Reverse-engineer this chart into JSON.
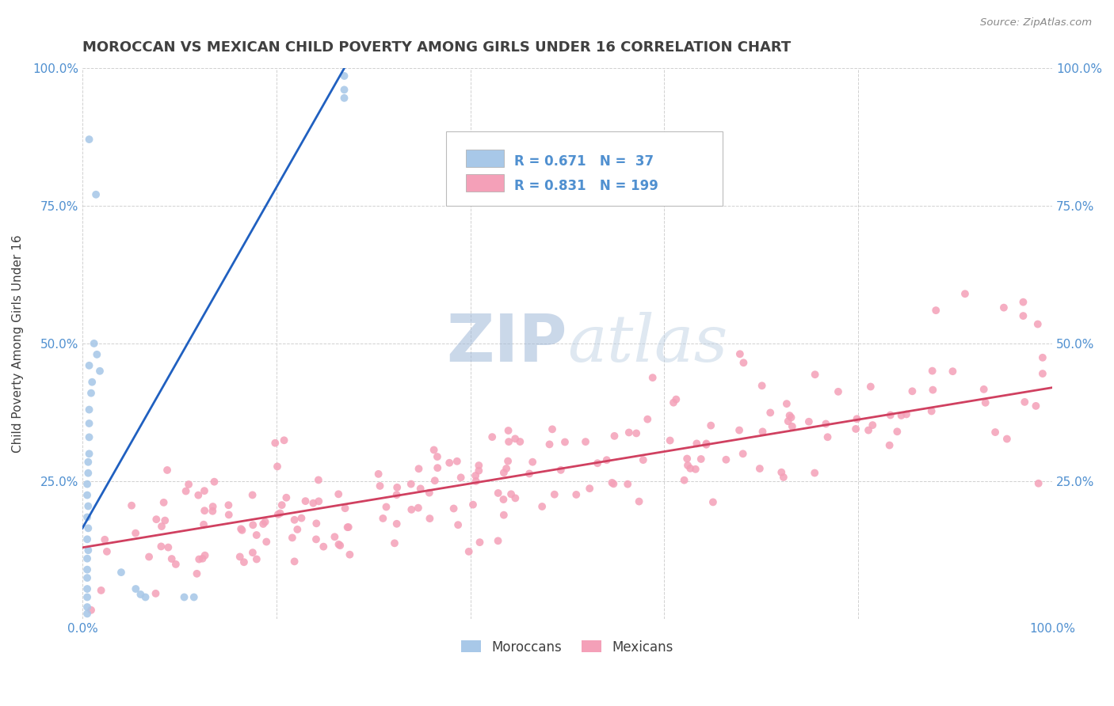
{
  "title": "MOROCCAN VS MEXICAN CHILD POVERTY AMONG GIRLS UNDER 16 CORRELATION CHART",
  "source": "Source: ZipAtlas.com",
  "ylabel": "Child Poverty Among Girls Under 16",
  "moroccan_R": 0.671,
  "moroccan_N": 37,
  "mexican_R": 0.831,
  "mexican_N": 199,
  "moroccan_color": "#a8c8e8",
  "mexican_color": "#f4a0b8",
  "moroccan_line_color": "#2060c0",
  "mexican_line_color": "#d04060",
  "watermark_zip": "ZIP",
  "watermark_atlas": "atlas",
  "watermark_color": "#c8d8ec",
  "background_color": "#ffffff",
  "grid_color": "#cccccc",
  "tick_label_color": "#5090d0",
  "title_color": "#404040",
  "legend_text_color": "#404040",
  "legend_val_color": "#5090d0",
  "xlim": [
    0.0,
    1.0
  ],
  "ylim": [
    0.0,
    1.0
  ],
  "moroccan_scatter": [
    [
      0.007,
      0.87
    ],
    [
      0.014,
      0.77
    ],
    [
      0.012,
      0.5
    ],
    [
      0.015,
      0.48
    ],
    [
      0.007,
      0.46
    ],
    [
      0.018,
      0.45
    ],
    [
      0.01,
      0.43
    ],
    [
      0.009,
      0.41
    ],
    [
      0.007,
      0.38
    ],
    [
      0.007,
      0.355
    ],
    [
      0.007,
      0.33
    ],
    [
      0.007,
      0.3
    ],
    [
      0.006,
      0.285
    ],
    [
      0.006,
      0.265
    ],
    [
      0.005,
      0.245
    ],
    [
      0.005,
      0.225
    ],
    [
      0.006,
      0.205
    ],
    [
      0.005,
      0.185
    ],
    [
      0.006,
      0.165
    ],
    [
      0.005,
      0.145
    ],
    [
      0.006,
      0.125
    ],
    [
      0.005,
      0.11
    ],
    [
      0.005,
      0.09
    ],
    [
      0.005,
      0.075
    ],
    [
      0.005,
      0.055
    ],
    [
      0.005,
      0.04
    ],
    [
      0.005,
      0.022
    ],
    [
      0.005,
      0.01
    ],
    [
      0.04,
      0.085
    ],
    [
      0.055,
      0.055
    ],
    [
      0.06,
      0.045
    ],
    [
      0.065,
      0.04
    ],
    [
      0.105,
      0.04
    ],
    [
      0.115,
      0.04
    ],
    [
      0.27,
      0.985
    ],
    [
      0.27,
      0.96
    ],
    [
      0.27,
      0.945
    ]
  ],
  "moroccan_line": [
    [
      0.0,
      0.165
    ],
    [
      0.28,
      1.03
    ]
  ],
  "mexican_line": [
    [
      0.0,
      0.13
    ],
    [
      1.0,
      0.42
    ]
  ]
}
